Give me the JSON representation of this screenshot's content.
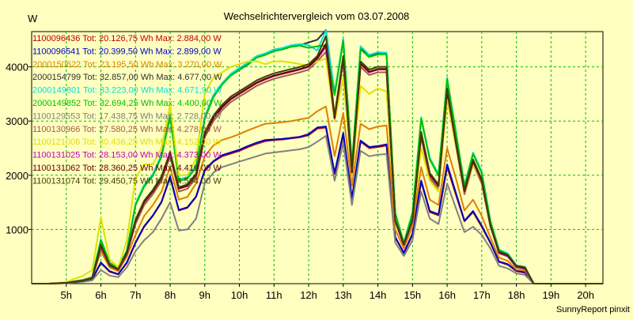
{
  "chart_data": {
    "type": "line",
    "title": "Wechselrichtervergleich vom 03.07.2008",
    "ylabel": "W",
    "xlabel": "",
    "footer": "SunnyReport pinxit",
    "xlim": [
      4.0,
      20.5
    ],
    "ylim": [
      0,
      4650
    ],
    "yticks": [
      {
        "value": 1000,
        "label": "1000"
      },
      {
        "value": 2000,
        "label": "2000"
      },
      {
        "value": 3000,
        "label": "3000"
      },
      {
        "value": 4000,
        "label": "4000"
      }
    ],
    "xticks": [
      {
        "value": 5,
        "label": "5h"
      },
      {
        "value": 6,
        "label": "6h"
      },
      {
        "value": 7,
        "label": "7h"
      },
      {
        "value": 8,
        "label": "8h"
      },
      {
        "value": 9,
        "label": "9h"
      },
      {
        "value": 10,
        "label": "10h"
      },
      {
        "value": 11,
        "label": "11h"
      },
      {
        "value": 12,
        "label": "12h"
      },
      {
        "value": 13,
        "label": "13h"
      },
      {
        "value": 14,
        "label": "14h"
      },
      {
        "value": 15,
        "label": "15h"
      },
      {
        "value": 16,
        "label": "16h"
      },
      {
        "value": 17,
        "label": "17h"
      },
      {
        "value": 18,
        "label": "18h"
      },
      {
        "value": 19,
        "label": "19h"
      },
      {
        "value": 20,
        "label": "20h"
      }
    ],
    "grid": true,
    "legend_position": "top-left",
    "x": [
      4.0,
      4.5,
      5.0,
      5.5,
      5.75,
      6.0,
      6.25,
      6.5,
      6.75,
      7.0,
      7.25,
      7.5,
      7.75,
      8.0,
      8.25,
      8.5,
      8.75,
      9.0,
      9.25,
      9.5,
      9.75,
      10.0,
      10.25,
      10.5,
      10.75,
      11.0,
      11.25,
      11.5,
      11.75,
      12.0,
      12.25,
      12.5,
      12.75,
      13.0,
      13.25,
      13.5,
      13.75,
      14.0,
      14.25,
      14.5,
      14.75,
      15.0,
      15.25,
      15.5,
      15.75,
      16.0,
      16.25,
      16.5,
      16.75,
      17.0,
      17.25,
      17.5,
      17.75,
      18.0,
      18.25,
      18.5,
      19.0,
      19.5,
      20.0,
      20.5
    ],
    "series": [
      {
        "name": "1100096436",
        "legend": "1100096436 Tot: 20.126,75 Wh Max: 2.884,00 W",
        "color": "#c00000",
        "values": [
          0,
          0,
          10,
          45,
          80,
          380,
          220,
          170,
          380,
          750,
          1050,
          1250,
          1500,
          1960,
          1350,
          1400,
          1600,
          2080,
          2250,
          2350,
          2400,
          2450,
          2520,
          2580,
          2630,
          2650,
          2660,
          2680,
          2700,
          2740,
          2860,
          2880,
          2020,
          2750,
          1550,
          2620,
          2500,
          2520,
          2550,
          850,
          560,
          900,
          1880,
          1320,
          1260,
          2150,
          1650,
          1150,
          1320,
          1050,
          750,
          400,
          350,
          230,
          200,
          0,
          0,
          0,
          0,
          0
        ]
      },
      {
        "name": "1100096541",
        "legend": "1100096541 Tot: 20.399,50 Wh Max: 2.899,00 W",
        "color": "#0000c0",
        "values": [
          0,
          0,
          10,
          48,
          85,
          390,
          230,
          175,
          390,
          760,
          1060,
          1260,
          1510,
          1980,
          1360,
          1410,
          1610,
          2100,
          2260,
          2370,
          2420,
          2470,
          2540,
          2600,
          2650,
          2660,
          2670,
          2690,
          2710,
          2760,
          2880,
          2899,
          2040,
          2780,
          1580,
          2640,
          2520,
          2540,
          2570,
          860,
          570,
          920,
          1900,
          1340,
          1280,
          2200,
          1680,
          1160,
          1340,
          1070,
          760,
          410,
          360,
          240,
          210,
          0,
          0,
          0,
          0,
          0
        ]
      },
      {
        "name": "2000150622",
        "legend": "2000150622 Tot: 23.195,50 Wh Max: 3.270,00 W",
        "color": "#e08000",
        "values": [
          0,
          0,
          15,
          60,
          100,
          600,
          300,
          230,
          500,
          900,
          1250,
          1450,
          1700,
          2150,
          1550,
          1600,
          1850,
          2350,
          2550,
          2650,
          2700,
          2760,
          2830,
          2890,
          2950,
          2960,
          2980,
          3000,
          3030,
          3060,
          3180,
          3270,
          2350,
          3150,
          1800,
          2950,
          2850,
          2900,
          2920,
          1000,
          650,
          1050,
          2150,
          1550,
          1450,
          2500,
          1950,
          1350,
          1550,
          1250,
          850,
          480,
          420,
          260,
          240,
          0,
          0,
          0,
          0,
          0
        ]
      },
      {
        "name": "2000154799",
        "legend": "2000154799 Tot: 32.857,00 Wh Max: 4.677,00 W",
        "color": "#303030",
        "values": [
          0,
          0,
          18,
          70,
          120,
          800,
          380,
          280,
          600,
          1450,
          1800,
          2000,
          2350,
          3100,
          1900,
          1950,
          2150,
          3050,
          3450,
          3680,
          3850,
          3950,
          4050,
          4180,
          4230,
          4300,
          4330,
          4380,
          4400,
          4450,
          4500,
          4677,
          3500,
          4500,
          2200,
          4350,
          4200,
          4250,
          4250,
          1300,
          750,
          1300,
          3050,
          2300,
          2000,
          3780,
          2800,
          1800,
          2400,
          2050,
          1150,
          620,
          550,
          330,
          300,
          0,
          0,
          0,
          0,
          0
        ]
      },
      {
        "name": "2000149801",
        "legend": "2000149801 Tot: 33.223,00 Wh Max: 4.671,90 W",
        "color": "#00e0e0",
        "values": [
          0,
          0,
          18,
          72,
          125,
          820,
          390,
          290,
          620,
          1480,
          1820,
          2020,
          2380,
          3130,
          1920,
          1970,
          2180,
          3080,
          3480,
          3700,
          3870,
          3980,
          4080,
          4200,
          4250,
          4320,
          4350,
          4400,
          4420,
          4400,
          4300,
          4671,
          3520,
          4520,
          2220,
          4380,
          4220,
          4270,
          4260,
          1310,
          760,
          1320,
          3070,
          2320,
          2020,
          3800,
          2820,
          1820,
          2420,
          2070,
          1160,
          630,
          560,
          340,
          310,
          0,
          0,
          0,
          0,
          0
        ]
      },
      {
        "name": "2000149852",
        "legend": "2000149852 Tot: 32.694,25 Wh Max: 4.400,00 W",
        "color": "#00c000",
        "values": [
          0,
          0,
          18,
          70,
          118,
          800,
          380,
          280,
          600,
          1450,
          1790,
          1990,
          2340,
          3090,
          1890,
          1940,
          2140,
          3040,
          3440,
          3670,
          3840,
          3940,
          4040,
          4170,
          4220,
          4290,
          4320,
          4370,
          4390,
          4350,
          4380,
          4400,
          3480,
          4480,
          2180,
          4320,
          4180,
          4230,
          4230,
          1290,
          740,
          1290,
          3040,
          2290,
          1990,
          3770,
          2790,
          1790,
          2390,
          2040,
          1140,
          610,
          540,
          320,
          290,
          0,
          0,
          0,
          0,
          0
        ]
      },
      {
        "name": "1100129553",
        "legend": "1100129553 Tot: 17.438,75 Wh Max: 2.728,00 W",
        "color": "#808080",
        "values": [
          0,
          0,
          8,
          35,
          60,
          250,
          150,
          120,
          300,
          600,
          800,
          950,
          1200,
          1500,
          980,
          1000,
          1200,
          1850,
          2050,
          2150,
          2200,
          2250,
          2300,
          2350,
          2400,
          2420,
          2440,
          2460,
          2480,
          2520,
          2620,
          2728,
          1900,
          2600,
          1450,
          2450,
          2350,
          2380,
          2390,
          760,
          510,
          800,
          1700,
          1200,
          1100,
          1850,
          1400,
          950,
          1050,
          900,
          650,
          330,
          280,
          190,
          160,
          0,
          0,
          0,
          0,
          0
        ]
      },
      {
        "name": "1100130966",
        "legend": "1100130966 Tot: 27.580,25 Wh Max: 4.278,00 W",
        "color": "#a06040",
        "values": [
          0,
          0,
          15,
          55,
          95,
          650,
          320,
          250,
          540,
          1100,
          1450,
          1650,
          1900,
          2350,
          1700,
          1750,
          1950,
          2700,
          3000,
          3200,
          3350,
          3450,
          3550,
          3650,
          3720,
          3780,
          3820,
          3860,
          3900,
          3950,
          4100,
          4278,
          3000,
          4100,
          2000,
          4000,
          3850,
          3900,
          3900,
          1150,
          700,
          1150,
          2700,
          1950,
          1750,
          3500,
          2550,
          1650,
          2200,
          1850,
          1050,
          560,
          500,
          300,
          270,
          0,
          0,
          0,
          0,
          0
        ]
      },
      {
        "name": "1100121006",
        "legend": "1100121006 Tot: 30.436,25 Wh Max: 4.152,00 W",
        "color": "#e0e000",
        "values": [
          0,
          0,
          30,
          150,
          250,
          1220,
          450,
          300,
          800,
          1950,
          2200,
          2200,
          2500,
          3300,
          2000,
          2000,
          2300,
          3500,
          3800,
          3900,
          4000,
          4050,
          4100,
          4100,
          4050,
          4100,
          4100,
          4080,
          4050,
          4020,
          4100,
          4152,
          3000,
          3800,
          2000,
          3650,
          3500,
          3600,
          3550,
          1200,
          700,
          1150,
          2500,
          1900,
          1700,
          3400,
          2550,
          1700,
          2200,
          1900,
          1050,
          580,
          520,
          310,
          280,
          0,
          0,
          0,
          0,
          0
        ]
      },
      {
        "name": "1100131025",
        "legend": "1100131025 Tot: 28.153,00 Wh Max: 4.373,00 W",
        "color": "#c000c0",
        "values": [
          0,
          0,
          15,
          58,
          100,
          700,
          340,
          260,
          560,
          1150,
          1500,
          1700,
          1950,
          2400,
          1750,
          1800,
          2000,
          2750,
          3050,
          3250,
          3400,
          3500,
          3600,
          3700,
          3770,
          3830,
          3870,
          3910,
          3950,
          4000,
          4150,
          4373,
          3050,
          4150,
          2050,
          4050,
          3900,
          3950,
          3950,
          1160,
          710,
          1160,
          2750,
          2000,
          1800,
          3550,
          2600,
          1700,
          2250,
          1900,
          1060,
          570,
          510,
          310,
          280,
          0,
          0,
          0,
          0,
          0
        ]
      },
      {
        "name": "1100131062",
        "legend": "1100131062 Tot: 28.360,25 Wh Max: 4.419,00 W",
        "color": "#600000",
        "values": [
          0,
          0,
          15,
          58,
          100,
          710,
          345,
          265,
          565,
          1160,
          1510,
          1710,
          1960,
          2410,
          1760,
          1810,
          2010,
          2760,
          3060,
          3260,
          3410,
          3510,
          3610,
          3710,
          3780,
          3840,
          3880,
          3920,
          3960,
          4010,
          4160,
          4419,
          3060,
          4170,
          2060,
          4060,
          3910,
          3960,
          3960,
          1170,
          720,
          1170,
          2760,
          2010,
          1810,
          3560,
          2610,
          1710,
          2260,
          1910,
          1070,
          580,
          520,
          320,
          290,
          0,
          0,
          0,
          0,
          0
        ]
      },
      {
        "name": "1100131074",
        "legend": "1100131074 Tot: 29.450,75 Wh Max: 4.564,00 W",
        "color": "#404000",
        "values": [
          0,
          0,
          16,
          60,
          105,
          720,
          350,
          270,
          580,
          1180,
          1530,
          1730,
          1980,
          2430,
          1780,
          1830,
          2030,
          2800,
          3100,
          3300,
          3450,
          3550,
          3650,
          3750,
          3820,
          3880,
          3920,
          3960,
          4000,
          4050,
          4200,
          4564,
          3100,
          4200,
          2100,
          4100,
          3950,
          4000,
          4000,
          1180,
          730,
          1180,
          2800,
          2040,
          1830,
          3600,
          2640,
          1730,
          2290,
          1930,
          1080,
          590,
          530,
          330,
          300,
          0,
          0,
          0,
          0,
          0
        ]
      }
    ]
  }
}
